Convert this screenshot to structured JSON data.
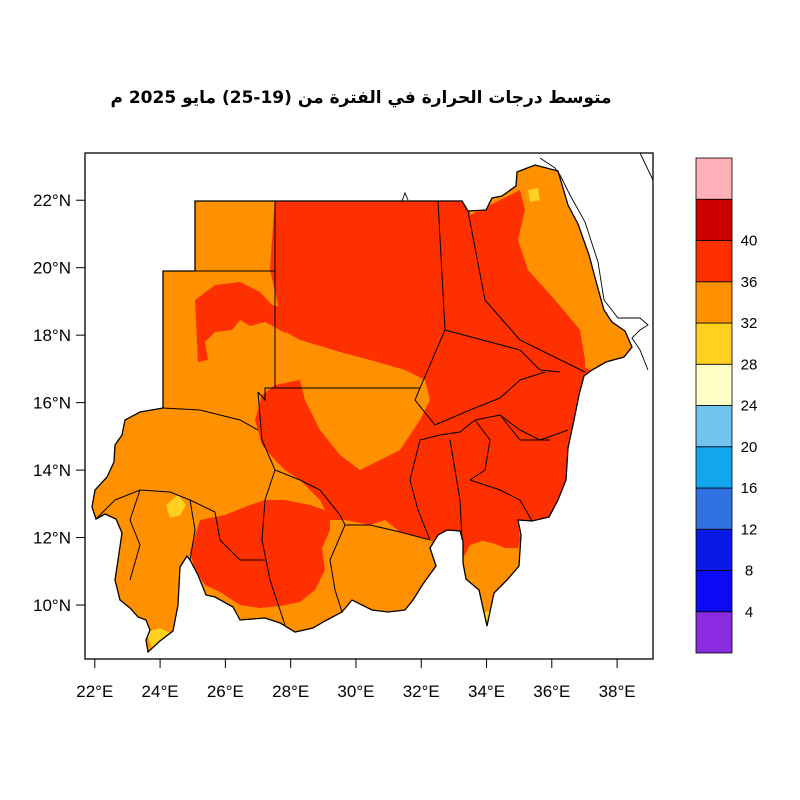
{
  "title": "متوسط درجات الحرارة في الفترة من (19-25) مايو 2025 م",
  "map": {
    "lon_range": [
      21.7,
      39.1
    ],
    "lat_range": [
      8.4,
      23.4
    ],
    "x_ticks": [
      {
        "value": 22,
        "label": "22°E"
      },
      {
        "value": 24,
        "label": "24°E"
      },
      {
        "value": 26,
        "label": "26°E"
      },
      {
        "value": 28,
        "label": "28°E"
      },
      {
        "value": 30,
        "label": "30°E"
      },
      {
        "value": 32,
        "label": "32°E"
      },
      {
        "value": 34,
        "label": "34°E"
      },
      {
        "value": 36,
        "label": "36°E"
      },
      {
        "value": 38,
        "label": "38°E"
      }
    ],
    "y_ticks": [
      {
        "value": 10,
        "label": "10°N"
      },
      {
        "value": 12,
        "label": "12°N"
      },
      {
        "value": 14,
        "label": "14°N"
      },
      {
        "value": 16,
        "label": "16°N"
      },
      {
        "value": 18,
        "label": "18°N"
      },
      {
        "value": 20,
        "label": "20°N"
      },
      {
        "value": 22,
        "label": "22°N"
      }
    ]
  },
  "colorbar": {
    "labels": [
      "4",
      "8",
      "12",
      "16",
      "20",
      "24",
      "28",
      "32",
      "36",
      "40"
    ],
    "colors": [
      "#8a2be2",
      "#0a0af5",
      "#0a18e8",
      "#3070e0",
      "#12a6ee",
      "#70c4ee",
      "#ffffc8",
      "#ffd020",
      "#ff9000",
      "#ff3000",
      "#cc0000",
      "#ffb0b8"
    ]
  },
  "zone_colors": {
    "c24_28": "#ffd020",
    "c28_32": "#ff9000",
    "c32_36": "#ff3000",
    "c36_40": "#cc0000"
  },
  "legend_icon": "temperature-colorbar"
}
